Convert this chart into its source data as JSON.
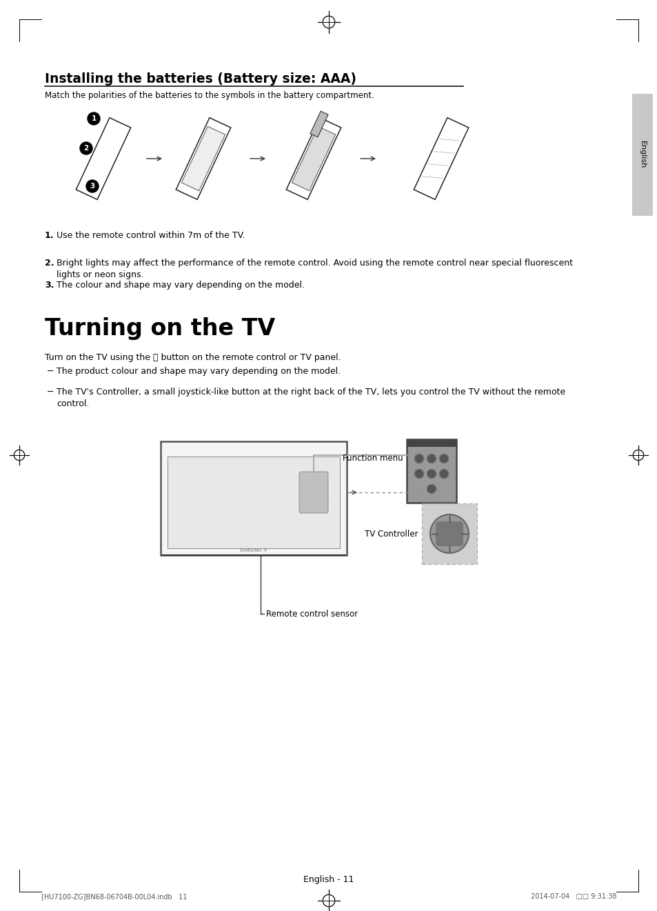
{
  "bg_color": "#ffffff",
  "title1": "Installing the batteries (Battery size: AAA)",
  "subtitle1": "Match the polarities of the batteries to the symbols in the battery compartment.",
  "items1_nums": [
    "1.",
    "2.",
    "3."
  ],
  "items1": [
    "Use the remote control within 7m of the TV.",
    "Bright lights may affect the performance of the remote control. Avoid using the remote control near special fluorescent\nlights or neon signs.",
    "The colour and shape may vary depending on the model."
  ],
  "title2": "Turning on the TV",
  "subtitle2": "Turn on the TV using the ⏽ button on the remote control or TV panel.",
  "bullets2": [
    "The product colour and shape may vary depending on the model.",
    "The TV's Controller, a small joystick-like button at the right back of the TV, lets you control the TV without the remote\ncontrol."
  ],
  "label_function_menu": "Function menu",
  "label_tv_controller": "TV Controller",
  "label_remote_sensor": "Remote control sensor",
  "footer_text": "English - 11",
  "bottom_text": "[HU7100-ZG]BN68-06704B-00L04.indb   11",
  "bottom_right": "2014-07-04   □□ 9:31:38",
  "english_tab": "English",
  "tab_color": "#c8c8c8",
  "text_color": "#000000"
}
